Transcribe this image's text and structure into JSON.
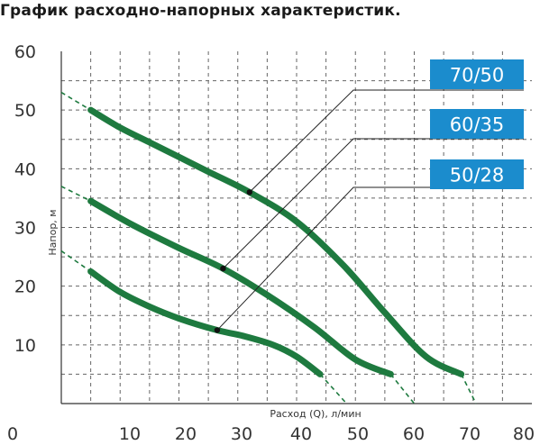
{
  "chart_data": {
    "type": "line",
    "title": "График расходно-напорных характеристик.",
    "xlabel": "Расход (Q), л/мин",
    "ylabel": "Напор, м",
    "xlim": [
      0,
      80
    ],
    "ylim": [
      0,
      60
    ],
    "x_ticks": [
      0,
      10,
      20,
      30,
      40,
      50,
      60,
      70,
      80
    ],
    "y_ticks": [
      10,
      20,
      30,
      40,
      50,
      60
    ],
    "grid": true,
    "colors": {
      "curve": "#1e7a3f",
      "badge": "#1b8ccd",
      "grid": "#666666",
      "leader": "#222222"
    },
    "series": [
      {
        "name": "70/50",
        "values": [
          [
            5,
            50
          ],
          [
            10,
            47
          ],
          [
            15,
            44.5
          ],
          [
            20,
            42
          ],
          [
            25,
            39.5
          ],
          [
            32,
            36
          ],
          [
            40,
            31
          ],
          [
            48,
            23.5
          ],
          [
            55,
            15.5
          ],
          [
            62,
            8
          ],
          [
            68,
            5
          ]
        ],
        "extrapolated_left": [
          [
            0,
            53
          ],
          [
            5,
            50
          ]
        ],
        "extrapolated_right": [
          [
            68,
            5
          ],
          [
            70.5,
            0
          ]
        ],
        "marker": [
          32,
          36
        ]
      },
      {
        "name": "60/35",
        "values": [
          [
            5,
            34.5
          ],
          [
            12,
            30.5
          ],
          [
            20,
            26.5
          ],
          [
            27.5,
            23
          ],
          [
            35,
            18.5
          ],
          [
            43,
            13
          ],
          [
            50,
            7.5
          ],
          [
            56,
            5
          ]
        ],
        "extrapolated_left": [
          [
            0,
            37
          ],
          [
            5,
            34.5
          ]
        ],
        "extrapolated_right": [
          [
            56,
            5
          ],
          [
            60,
            0
          ]
        ],
        "marker": [
          27.5,
          23
        ]
      },
      {
        "name": "50/28",
        "values": [
          [
            5,
            22.5
          ],
          [
            10,
            19
          ],
          [
            15,
            16.5
          ],
          [
            20,
            14.5
          ],
          [
            26.5,
            12.5
          ],
          [
            31,
            11.5
          ],
          [
            36,
            10
          ],
          [
            40,
            8
          ],
          [
            44,
            5
          ]
        ],
        "extrapolated_left": [
          [
            0,
            26
          ],
          [
            5,
            22.5
          ]
        ],
        "extrapolated_right": [
          [
            44,
            5
          ],
          [
            48.5,
            0
          ]
        ],
        "marker": [
          26.5,
          12.5
        ]
      }
    ],
    "annotations": [
      {
        "label": "70/50",
        "series": "70/50"
      },
      {
        "label": "60/35",
        "series": "60/35"
      },
      {
        "label": "50/28",
        "series": "50/28"
      }
    ]
  }
}
